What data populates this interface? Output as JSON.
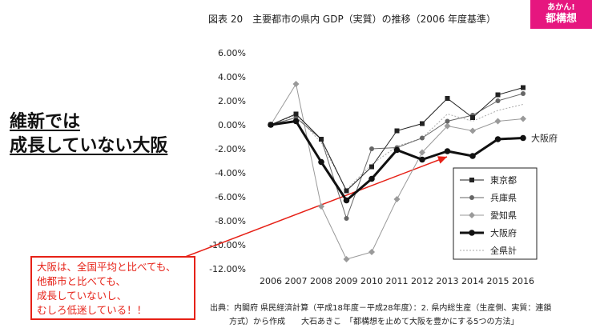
{
  "logo": {
    "line1": "あかん!",
    "line2": "都構想"
  },
  "headline": {
    "line1": "維新では",
    "line2": "成長していない大阪"
  },
  "callout": {
    "lines": [
      "大阪は、全国平均と比べても、",
      "他都市と比べても、",
      "成長していないし、",
      "むしろ低迷している！！"
    ]
  },
  "source": {
    "line1": "出典：内閣府 県民経済計算（平成18年度－平成28年度）：2. 県内総生産（生産側、実質：連鎖",
    "line2": "方式）から作成　　大石あきこ　「都構想を止めて大阪を豊かにする5つの方法」"
  },
  "colors": {
    "logo": "#e6167f",
    "callout": "#e62117",
    "tokyo": "#222222",
    "hyogo": "#666666",
    "aichi": "#9a9a9a",
    "osaka": "#111111",
    "national": "#aaaaaa"
  },
  "chart_data": {
    "type": "line",
    "title": "図表 20　主要都市の県内 GDP（実質）の推移（2006 年度基準）",
    "x": [
      2006,
      2007,
      2008,
      2009,
      2010,
      2011,
      2012,
      2013,
      2014,
      2015,
      2016
    ],
    "yticks": [
      "6.00%",
      "4.00%",
      "2.00%",
      "0.00%",
      "-2.00%",
      "-4.00%",
      "-6.00%",
      "-8.00%",
      "-10.00%",
      "-12.00%"
    ],
    "ylim": [
      -12,
      6
    ],
    "grid": false,
    "legend_position": "right",
    "series": [
      {
        "name": "東京都",
        "marker": "square",
        "color": "#222222",
        "width": 1,
        "dash": "none",
        "values": [
          0.0,
          0.9,
          -1.2,
          -5.5,
          -3.5,
          -0.5,
          0.1,
          2.2,
          0.6,
          2.5,
          3.1
        ]
      },
      {
        "name": "兵庫県",
        "marker": "circle",
        "color": "#666666",
        "width": 1,
        "dash": "none",
        "values": [
          0.0,
          0.6,
          -1.2,
          -7.8,
          -2.0,
          -1.9,
          -1.1,
          0.3,
          0.8,
          2.0,
          2.6
        ]
      },
      {
        "name": "愛知県",
        "marker": "diamond",
        "color": "#9a9a9a",
        "width": 1,
        "dash": "none",
        "values": [
          0.0,
          3.4,
          -6.8,
          -11.2,
          -10.6,
          -6.2,
          -2.3,
          -0.1,
          -0.5,
          0.3,
          0.5
        ]
      },
      {
        "name": "大阪府",
        "marker": "circle",
        "color": "#111111",
        "width": 3,
        "dash": "none",
        "values": [
          0.0,
          0.3,
          -3.1,
          -6.3,
          -4.5,
          -2.1,
          -2.9,
          -2.2,
          -2.6,
          -1.2,
          -1.1
        ]
      },
      {
        "name": "全県計",
        "marker": "none",
        "color": "#aaaaaa",
        "width": 1,
        "dash": "2,2",
        "values": [
          0.0,
          0.8,
          -1.5,
          -5.4,
          -3.3,
          -1.8,
          -1.1,
          0.9,
          0.3,
          1.2,
          1.7
        ]
      }
    ],
    "annotation": "大阪府"
  }
}
